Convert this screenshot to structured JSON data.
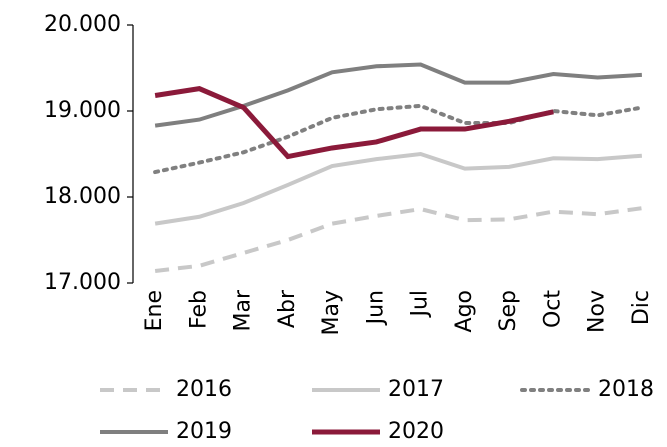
{
  "chart_data": {
    "type": "line",
    "categories": [
      "Ene",
      "Feb",
      "Mar",
      "Abr",
      "May",
      "Jun",
      "Jul",
      "Ago",
      "Sep",
      "Oct",
      "Nov",
      "Dic"
    ],
    "ylim": [
      17000,
      20000
    ],
    "yticks": [
      {
        "value": 17000,
        "label": "17.000"
      },
      {
        "value": 18000,
        "label": "18.000"
      },
      {
        "value": 19000,
        "label": "19.000"
      },
      {
        "value": 20000,
        "label": "20.000"
      }
    ],
    "legend": "bottom",
    "series": [
      {
        "name": "2016",
        "color": "#c8c8c8",
        "dash": "dashed",
        "values": [
          17140,
          17200,
          17350,
          17500,
          17690,
          17780,
          17860,
          17730,
          17740,
          17830,
          17800,
          17870
        ]
      },
      {
        "name": "2017",
        "color": "#c8c8c8",
        "dash": "solid",
        "values": [
          17690,
          17770,
          17930,
          18140,
          18360,
          18440,
          18500,
          18330,
          18350,
          18450,
          18440,
          18480
        ]
      },
      {
        "name": "2018",
        "color": "#808080",
        "dash": "dotted",
        "values": [
          18290,
          18400,
          18520,
          18700,
          18920,
          19020,
          19060,
          18860,
          18860,
          19000,
          18950,
          19040
        ]
      },
      {
        "name": "2019",
        "color": "#7f7f7f",
        "dash": "solid",
        "values": [
          18830,
          18900,
          19060,
          19240,
          19450,
          19520,
          19540,
          19330,
          19330,
          19430,
          19390,
          19420
        ]
      },
      {
        "name": "2020",
        "color": "#8b1a3a",
        "dash": "solid",
        "values": [
          19180,
          19260,
          19040,
          18470,
          18570,
          18640,
          18790,
          18790,
          18880,
          18990,
          null,
          null
        ]
      }
    ]
  }
}
